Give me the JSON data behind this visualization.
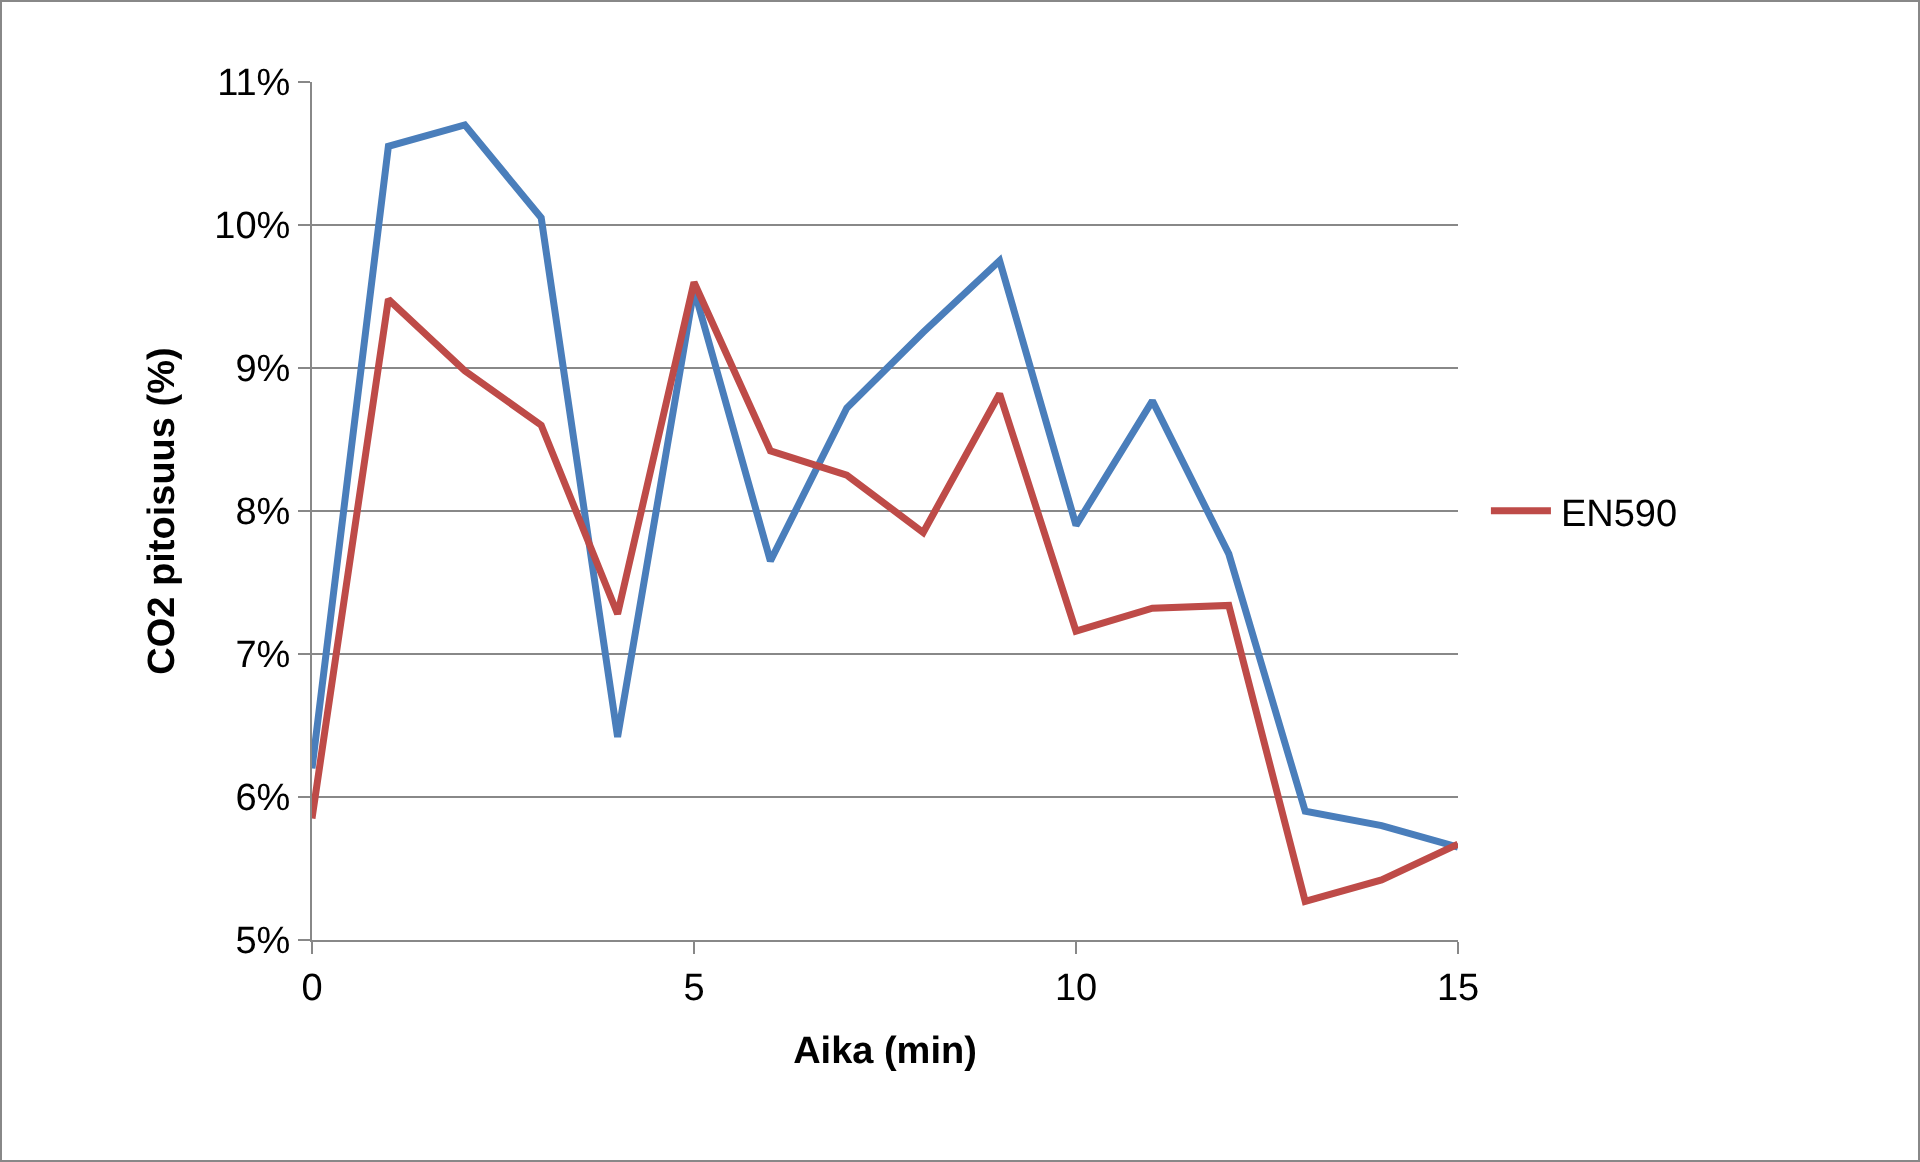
{
  "chart_data": {
    "type": "line",
    "xlabel": "Aika (min)",
    "ylabel": "CO2 pitoisuus (%)",
    "x": [
      0,
      1,
      2,
      3,
      4,
      5,
      6,
      7,
      8,
      9,
      10,
      11,
      12,
      13,
      14,
      15
    ],
    "series": [
      {
        "color": "#4a7ebb",
        "values": [
          6.2,
          10.55,
          10.7,
          10.05,
          6.42,
          9.55,
          7.65,
          8.72,
          9.25,
          9.75,
          7.9,
          8.77,
          7.7,
          5.9,
          5.8,
          5.65
        ]
      },
      {
        "name": "EN590",
        "color": "#be4b48",
        "values": [
          5.85,
          9.48,
          8.98,
          8.6,
          7.28,
          9.6,
          8.42,
          8.25,
          7.85,
          8.82,
          7.16,
          7.32,
          7.34,
          5.27,
          5.42,
          5.67
        ]
      }
    ],
    "xlim": [
      0,
      15
    ],
    "xticks": [
      0,
      5,
      10,
      15
    ],
    "ylim": [
      5,
      11
    ],
    "yticks": [
      {
        "value": 5,
        "label": "5%"
      },
      {
        "value": 6,
        "label": "6%"
      },
      {
        "value": 7,
        "label": "7%"
      },
      {
        "value": 8,
        "label": "8%"
      },
      {
        "value": 9,
        "label": "9%"
      },
      {
        "value": 10,
        "label": "10%"
      },
      {
        "value": 11,
        "label": "11%"
      }
    ],
    "grid": "y",
    "legend": "right",
    "marker": "none",
    "line_style": "solid"
  }
}
